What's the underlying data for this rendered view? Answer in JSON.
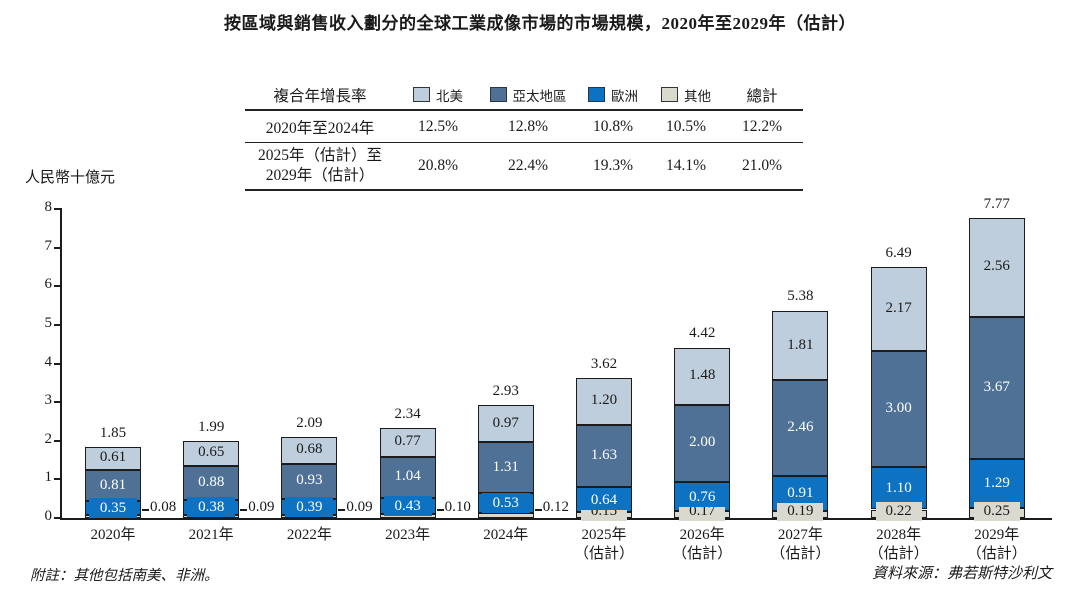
{
  "title": "按區域與銷售收入劃分的全球工業成像市場的市場規模，2020年至2029年（估計）",
  "y_axis_label": "人民幣十億元",
  "footnote": "附註：其他包括南美、非洲。",
  "source": "資料來源：弗若斯特沙利文",
  "cagr_table": {
    "header_label": "複合年增長率",
    "total_label": "總計",
    "legend": [
      {
        "label": "北美",
        "color": "#bfcedd"
      },
      {
        "label": "亞太地區",
        "color": "#4e7195"
      },
      {
        "label": "歐洲",
        "color": "#0e72c3"
      },
      {
        "label": "其他",
        "color": "#d9d9d0"
      }
    ],
    "rows": [
      {
        "period_lines": [
          "2020年至2024年",
          ""
        ],
        "values": [
          "12.5%",
          "12.8%",
          "10.8%",
          "10.5%",
          "12.2%"
        ]
      },
      {
        "period_lines": [
          "2025年（估計）至",
          "2029年（估計）"
        ],
        "values": [
          "20.8%",
          "22.4%",
          "19.3%",
          "14.1%",
          "21.0%"
        ]
      }
    ]
  },
  "chart_data": {
    "type": "bar",
    "stacked": true,
    "title": "按區域與銷售收入劃分的全球工業成像市場的市場規模，2020年至2029年（估計）",
    "ylabel": "人民幣十億元",
    "ylim": [
      0,
      8
    ],
    "yticks": [
      0,
      1,
      2,
      3,
      4,
      5,
      6,
      7,
      8
    ],
    "grid": false,
    "legend_position": "top-table",
    "categories": [
      "2020年",
      "2021年",
      "2022年",
      "2023年",
      "2024年",
      "2025年\n（估計）",
      "2026年\n（估計）",
      "2027年\n（估計）",
      "2028年\n（估計）",
      "2029年\n（估計）"
    ],
    "series": [
      {
        "name": "北美",
        "color": "#bfcedd",
        "label_color": "#1a1a1a",
        "values": [
          0.61,
          0.65,
          0.68,
          0.77,
          0.97,
          1.2,
          1.48,
          1.81,
          2.17,
          2.56
        ]
      },
      {
        "name": "亞太地區",
        "color": "#4e7195",
        "label_color": "#ffffff",
        "values": [
          0.81,
          0.88,
          0.93,
          1.04,
          1.31,
          1.63,
          2.0,
          2.46,
          3.0,
          3.67
        ]
      },
      {
        "name": "歐洲",
        "color": "#0e72c3",
        "label_color": "#ffffff",
        "values": [
          0.35,
          0.38,
          0.39,
          0.43,
          0.53,
          0.64,
          0.76,
          0.91,
          1.1,
          1.29
        ]
      },
      {
        "name": "其他",
        "color": "#d9d9d0",
        "label_color": "#1a1a1a",
        "values": [
          0.08,
          0.09,
          0.09,
          0.1,
          0.12,
          0.15,
          0.17,
          0.19,
          0.22,
          0.25
        ]
      }
    ],
    "totals": [
      1.85,
      1.99,
      2.09,
      2.34,
      2.93,
      3.62,
      4.42,
      5.38,
      6.49,
      7.77
    ],
    "cagr_2020_2024": [
      "12.5%",
      "12.8%",
      "10.8%",
      "10.5%",
      "12.2%"
    ],
    "cagr_2025_2029": [
      "20.8%",
      "22.4%",
      "19.3%",
      "14.1%",
      "21.0%"
    ]
  }
}
